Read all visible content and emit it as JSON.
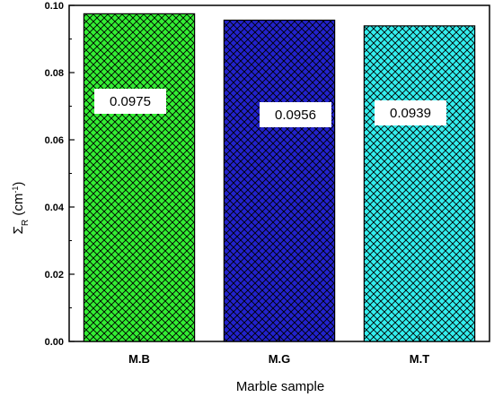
{
  "chart_data": {
    "type": "bar",
    "categories": [
      "M.B",
      "M.G",
      "M.T"
    ],
    "values": [
      0.0975,
      0.0956,
      0.0939
    ],
    "data_labels": [
      "0.0975",
      "0.0956",
      "0.0939"
    ],
    "xlabel": "Marble sample",
    "ylabel": "ΣR (cm-1)",
    "ylabel_parts": {
      "symbol": "Σ",
      "subscript": "R",
      "unit_open": " (cm",
      "superscript": "-1",
      "unit_close": ")"
    },
    "ylim": [
      0,
      0.1
    ],
    "yticks": [
      "0.00",
      "0.02",
      "0.04",
      "0.06",
      "0.08",
      "0.10"
    ],
    "bar_colors": [
      "#33ee33",
      "#2222cc",
      "#33eeee"
    ],
    "fill_pattern": "crosshatch",
    "grid": false,
    "legend": "none"
  }
}
